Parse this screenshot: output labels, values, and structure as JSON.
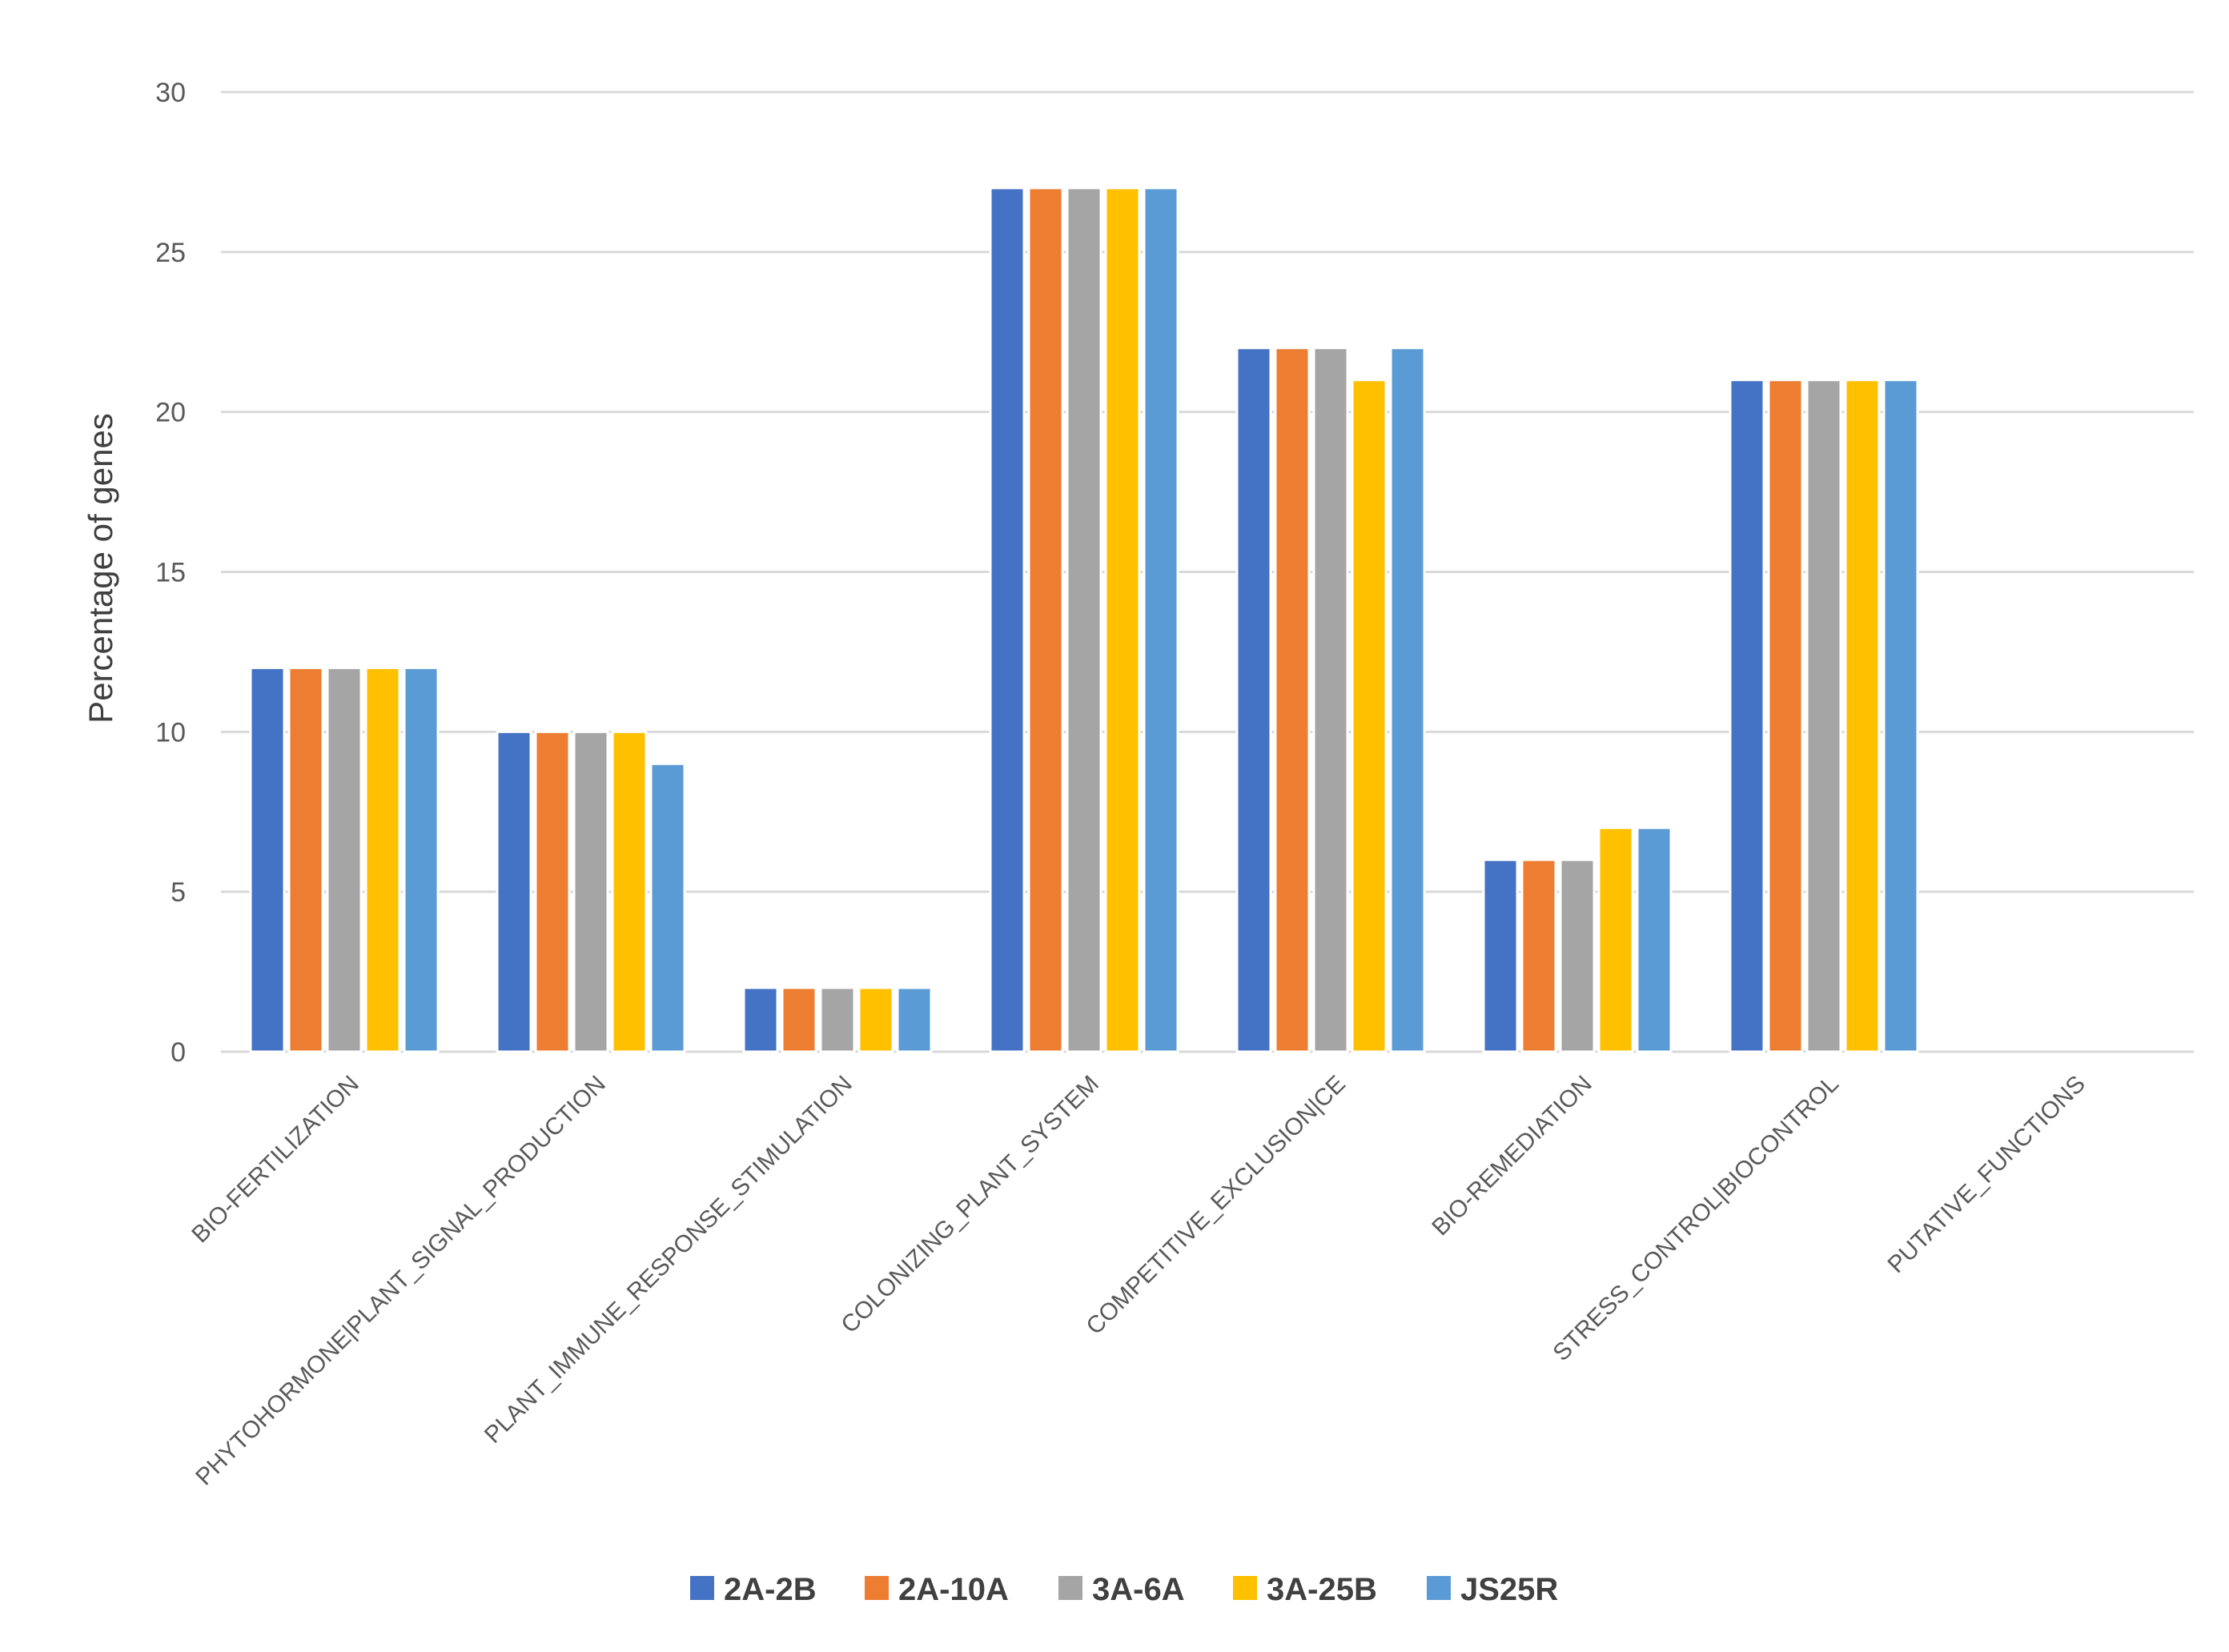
{
  "chart_data": {
    "type": "bar",
    "title": "",
    "xlabel": "",
    "ylabel": "Percentage of genes",
    "ylim": [
      0,
      30
    ],
    "yticks": [
      0,
      5,
      10,
      15,
      20,
      25,
      30
    ],
    "grid": true,
    "legend_position": "bottom",
    "categories": [
      "BIO-FERTILIZATION",
      "PHYTOHORMONE|PLANT_SIGNAL_PRODUCTION",
      "PLANT_IMMUNE_RESPONSE_STIMULATION",
      "COLONIZING_PLANT_SYSTEM",
      "COMPETITIVE_EXCLUSION|CE",
      "BIO-REMEDIATION",
      "STRESS_CONTROL|BIOCONTROL",
      "PUTATIVE_FUNCTIONS"
    ],
    "series": [
      {
        "name": "2A-2B",
        "color": "#4472c4",
        "values": [
          12,
          10,
          2,
          27,
          22,
          6,
          21,
          0
        ]
      },
      {
        "name": "2A-10A",
        "color": "#ed7d31",
        "values": [
          12,
          10,
          2,
          27,
          22,
          6,
          21,
          0
        ]
      },
      {
        "name": "3A-6A",
        "color": "#a5a5a5",
        "values": [
          12,
          10,
          2,
          27,
          22,
          6,
          21,
          0
        ]
      },
      {
        "name": "3A-25B",
        "color": "#ffc000",
        "values": [
          12,
          10,
          2,
          27,
          21,
          7,
          21,
          0
        ]
      },
      {
        "name": "JS25R",
        "color": "#5b9bd5",
        "values": [
          12,
          9,
          2,
          27,
          22,
          7,
          21,
          0
        ]
      }
    ]
  }
}
